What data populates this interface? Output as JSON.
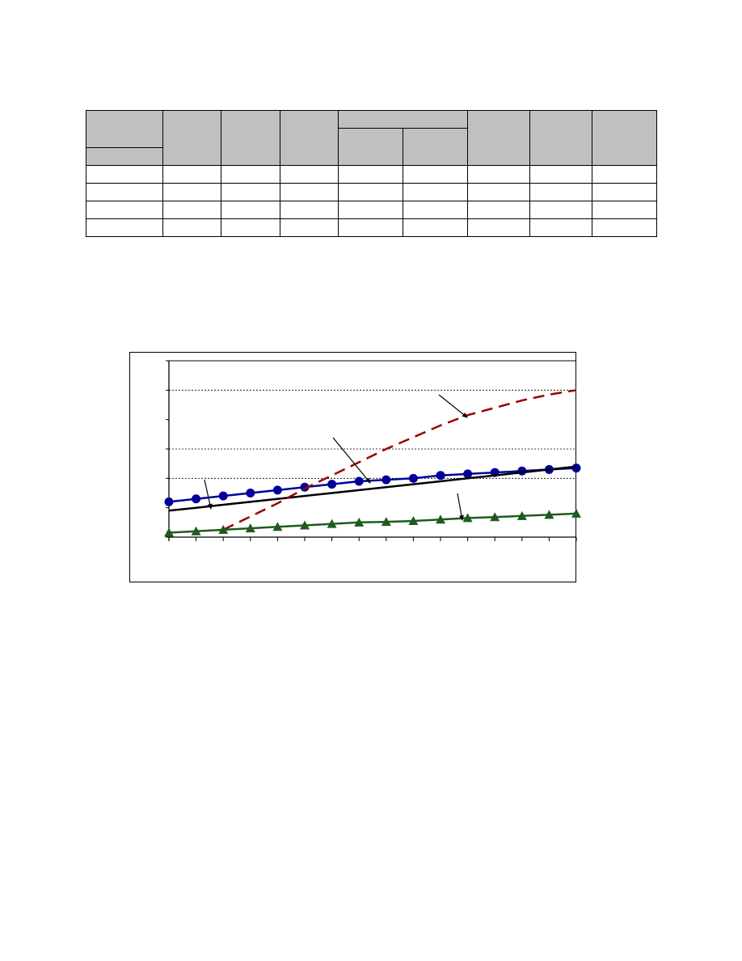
{
  "table": {
    "header_cells": [
      "",
      "",
      "",
      "",
      "",
      "",
      "",
      "",
      "",
      ""
    ],
    "rows": [
      [
        "",
        "",
        "",
        "",
        "",
        "",
        "",
        "",
        ""
      ],
      [
        "",
        "",
        "",
        "",
        "",
        "",
        "",
        "",
        ""
      ],
      [
        "",
        "",
        "",
        "",
        "",
        "",
        "",
        "",
        ""
      ],
      [
        "",
        "",
        "",
        "",
        "",
        "",
        "",
        "",
        ""
      ]
    ]
  },
  "chart_data": {
    "type": "line",
    "title": "",
    "xlabel": "",
    "ylabel": "",
    "x": [
      0,
      1,
      2,
      3,
      4,
      5,
      6,
      7,
      8,
      9,
      10,
      11,
      12,
      13,
      14,
      15
    ],
    "ylim": [
      0,
      6
    ],
    "gridlines_y": [
      2,
      3,
      5
    ],
    "series": [
      {
        "style": "blue-circles",
        "color": "#000099",
        "values": [
          1.2,
          1.3,
          1.4,
          1.5,
          1.6,
          1.7,
          1.8,
          1.9,
          1.95,
          2.0,
          2.1,
          2.15,
          2.2,
          2.25,
          2.3,
          2.35
        ]
      },
      {
        "style": "black-solid",
        "color": "#000000",
        "values": [
          0.9,
          1.0,
          1.1,
          1.2,
          1.3,
          1.4,
          1.5,
          1.6,
          1.7,
          1.8,
          1.9,
          2.0,
          2.1,
          2.2,
          2.3,
          2.4
        ]
      },
      {
        "style": "red-dashed",
        "color": "#990000",
        "values": [
          null,
          null,
          0.25,
          0.7,
          1.15,
          1.65,
          2.1,
          2.55,
          3.0,
          3.4,
          3.8,
          4.15,
          4.4,
          4.65,
          4.85,
          5.0
        ]
      },
      {
        "style": "green-triangles",
        "color": "#1f5a1f",
        "values": [
          0.15,
          0.2,
          0.25,
          0.3,
          0.35,
          0.4,
          0.45,
          0.5,
          0.52,
          0.55,
          0.6,
          0.65,
          0.68,
          0.72,
          0.76,
          0.8
        ]
      }
    ]
  }
}
